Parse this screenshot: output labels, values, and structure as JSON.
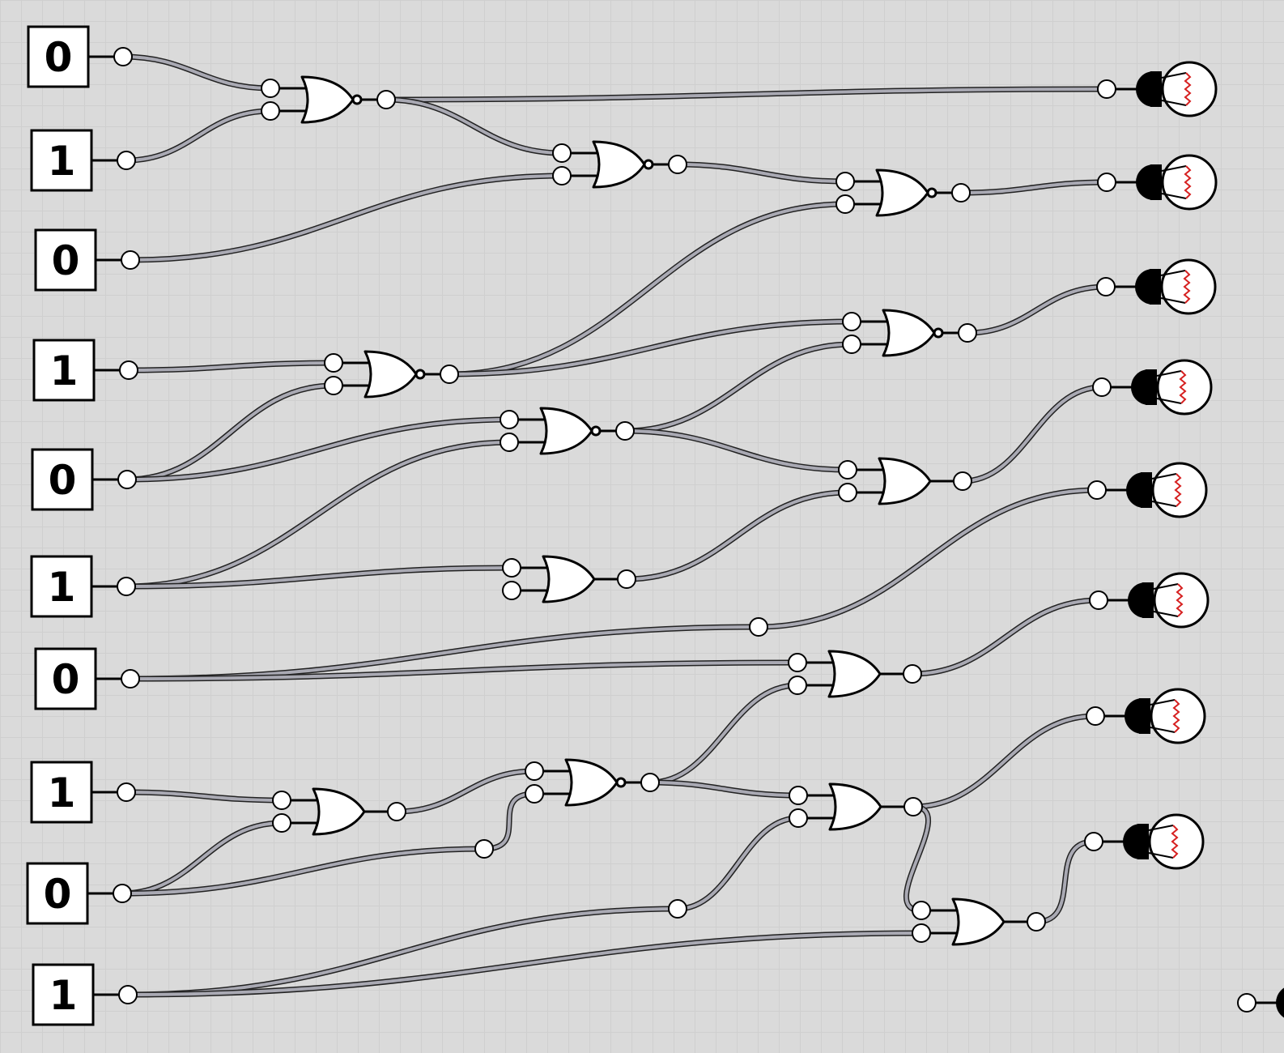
{
  "inputs": [
    {
      "id": "in1",
      "value": "0"
    },
    {
      "id": "in2",
      "value": "1"
    },
    {
      "id": "in3",
      "value": "0"
    },
    {
      "id": "in4",
      "value": "1"
    },
    {
      "id": "in5",
      "value": "0"
    },
    {
      "id": "in6",
      "value": "1"
    },
    {
      "id": "in7",
      "value": "0"
    },
    {
      "id": "in8",
      "value": "1"
    },
    {
      "id": "in9",
      "value": "0"
    },
    {
      "id": "in10",
      "value": "1"
    }
  ],
  "gates": [
    {
      "id": "g1",
      "type": "nor"
    },
    {
      "id": "g2",
      "type": "nor"
    },
    {
      "id": "g3",
      "type": "nor"
    },
    {
      "id": "g4",
      "type": "nor"
    },
    {
      "id": "g5",
      "type": "nor"
    },
    {
      "id": "g6",
      "type": "nor"
    },
    {
      "id": "g7",
      "type": "or"
    },
    {
      "id": "g8",
      "type": "or"
    },
    {
      "id": "g9",
      "type": "or"
    },
    {
      "id": "g10",
      "type": "or"
    },
    {
      "id": "g11",
      "type": "nor"
    },
    {
      "id": "g12",
      "type": "or"
    },
    {
      "id": "g13",
      "type": "or"
    }
  ],
  "outputs": [
    {
      "id": "out1",
      "state": "off"
    },
    {
      "id": "out2",
      "state": "off"
    },
    {
      "id": "out3",
      "state": "off"
    },
    {
      "id": "out4",
      "state": "off"
    },
    {
      "id": "out5",
      "state": "off"
    },
    {
      "id": "out6",
      "state": "off"
    },
    {
      "id": "out7",
      "state": "off"
    },
    {
      "id": "out8",
      "state": "off"
    },
    {
      "id": "out9",
      "state": "off"
    }
  ],
  "connections": [
    {
      "from": "in1",
      "to": "g1.a"
    },
    {
      "from": "in2",
      "to": "g1.b"
    },
    {
      "from": "g1",
      "to": "out1"
    },
    {
      "from": "g1",
      "to": "g2.a"
    },
    {
      "from": "in3",
      "to": "g2.b"
    },
    {
      "from": "g2",
      "to": "g3.a"
    },
    {
      "from": "g4",
      "to": "g3.b"
    },
    {
      "from": "g3",
      "to": "out2"
    },
    {
      "from": "in4",
      "to": "g4.a"
    },
    {
      "from": "in5",
      "to": "g4.b"
    },
    {
      "from": "g4",
      "to": "g5.a"
    },
    {
      "from": "g6",
      "to": "g5.b"
    },
    {
      "from": "g5",
      "to": "out3"
    },
    {
      "from": "in5",
      "to": "g6.a"
    },
    {
      "from": "in6",
      "to": "g6.b"
    },
    {
      "from": "g6",
      "to": "g7.a"
    },
    {
      "from": "g8",
      "to": "g7.b"
    },
    {
      "from": "g7",
      "to": "out4"
    },
    {
      "from": "in6",
      "to": "g8.a"
    },
    {
      "from": "in7",
      "to": "out5"
    },
    {
      "from": "in7",
      "to": "g9.a"
    },
    {
      "from": "g11",
      "to": "g9.b"
    },
    {
      "from": "g9",
      "to": "out6"
    },
    {
      "from": "in8",
      "to": "g10.a"
    },
    {
      "from": "in9",
      "to": "g10.b"
    },
    {
      "from": "g10",
      "to": "g11.a"
    },
    {
      "from": "in9",
      "to": "g11.b"
    },
    {
      "from": "g11",
      "to": "g12.a"
    },
    {
      "from": "in10",
      "to": "g12.b"
    },
    {
      "from": "g12",
      "to": "out7"
    },
    {
      "from": "g12",
      "to": "g13.a"
    },
    {
      "from": "in10",
      "to": "g13.b"
    },
    {
      "from": "g13",
      "to": "out8"
    }
  ]
}
